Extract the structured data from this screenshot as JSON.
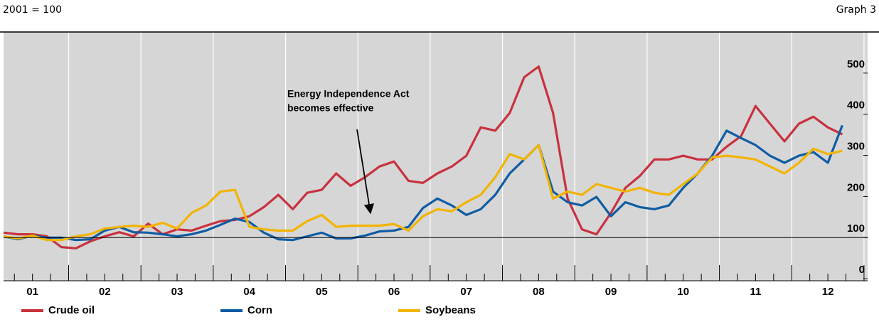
{
  "chart_data": {
    "type": "line",
    "subtitle": "2001 = 100",
    "graph_label": "Graph 3",
    "annotation": [
      "Energy Independence Act",
      "becomes effective"
    ],
    "x": [
      2001.1,
      2001.3,
      2001.5,
      2001.7,
      2001.9,
      2002.1,
      2002.3,
      2002.5,
      2002.7,
      2002.9,
      2003.1,
      2003.3,
      2003.5,
      2003.7,
      2003.9,
      2004.1,
      2004.3,
      2004.5,
      2004.7,
      2004.9,
      2005.1,
      2005.3,
      2005.5,
      2005.7,
      2005.9,
      2006.1,
      2006.3,
      2006.5,
      2006.7,
      2006.9,
      2007.1,
      2007.3,
      2007.5,
      2007.7,
      2007.9,
      2008.1,
      2008.3,
      2008.5,
      2008.7,
      2008.9,
      2009.1,
      2009.3,
      2009.5,
      2009.7,
      2009.9,
      2010.1,
      2010.3,
      2010.5,
      2010.7,
      2010.9,
      2011.1,
      2011.3,
      2011.5,
      2011.7,
      2011.9,
      2012.1,
      2012.3,
      2012.5,
      2012.7
    ],
    "series": [
      {
        "name": "Crude oil",
        "color": "#c8313e",
        "values": [
          112,
          108,
          108,
          103,
          77,
          74,
          91,
          103,
          113,
          103,
          134,
          108,
          120,
          117,
          129,
          140,
          143,
          152,
          174,
          204,
          169,
          209,
          216,
          256,
          226,
          247,
          273,
          285,
          238,
          233,
          256,
          273,
          299,
          368,
          360,
          403,
          490,
          516,
          403,
          195,
          120,
          108,
          160,
          221,
          250,
          290,
          290,
          299,
          290,
          290,
          321,
          347,
          420,
          377,
          334,
          377,
          394,
          368,
          351
        ]
      },
      {
        "name": "Corn",
        "color": "#0f5ca3",
        "values": [
          103,
          96,
          105,
          100,
          100,
          94,
          96,
          117,
          126,
          113,
          112,
          108,
          103,
          108,
          117,
          131,
          146,
          138,
          112,
          96,
          94,
          103,
          112,
          98,
          98,
          105,
          115,
          117,
          126,
          172,
          195,
          178,
          155,
          169,
          204,
          256,
          290,
          325,
          212,
          186,
          178,
          199,
          152,
          186,
          174,
          169,
          178,
          221,
          256,
          299,
          360,
          342,
          325,
          299,
          282,
          299,
          308,
          282,
          373
        ]
      },
      {
        "name": "Soybeans",
        "color": "#f2b400",
        "values": [
          103,
          98,
          105,
          94,
          94,
          103,
          108,
          122,
          126,
          129,
          126,
          136,
          122,
          160,
          178,
          212,
          216,
          126,
          120,
          117,
          117,
          140,
          155,
          126,
          129,
          129,
          129,
          133,
          117,
          152,
          169,
          164,
          186,
          204,
          247,
          303,
          290,
          325,
          195,
          212,
          204,
          230,
          221,
          212,
          221,
          209,
          204,
          230,
          256,
          295,
          299,
          295,
          290,
          273,
          256,
          282,
          316,
          303,
          311
        ]
      }
    ],
    "xlim": [
      2001.1,
      2013.05
    ],
    "xticks": [
      {
        "value": 2001.5,
        "label": "01"
      },
      {
        "value": 2002.5,
        "label": "02"
      },
      {
        "value": 2003.5,
        "label": "03"
      },
      {
        "value": 2004.5,
        "label": "04"
      },
      {
        "value": 2005.5,
        "label": "05"
      },
      {
        "value": 2006.5,
        "label": "06"
      },
      {
        "value": 2007.5,
        "label": "07"
      },
      {
        "value": 2008.5,
        "label": "08"
      },
      {
        "value": 2009.5,
        "label": "09"
      },
      {
        "value": 2010.5,
        "label": "10"
      },
      {
        "value": 2011.5,
        "label": "11"
      },
      {
        "value": 2012.5,
        "label": "12"
      }
    ],
    "ylim": [
      -5,
      600
    ],
    "yticks": [
      0,
      100,
      200,
      300,
      400,
      500
    ],
    "baseline": 100,
    "grid": "x",
    "legend": "bottom"
  }
}
